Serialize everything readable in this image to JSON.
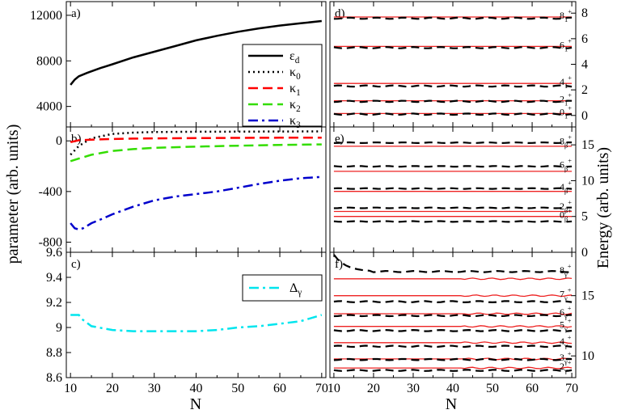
{
  "figure": {
    "left_axis_label": "parameter (arb. units)",
    "right_axis_label": "Energy (arb. units)",
    "bottom_axis_label": "N"
  },
  "chart_data": [
    {
      "panel": "a)",
      "type": "line",
      "ylim": [
        2200,
        13200
      ],
      "yticks": [
        4000,
        8000,
        12000
      ],
      "xlim": [
        9,
        71
      ],
      "xticks": [
        10,
        20,
        30,
        40,
        50,
        60,
        70
      ],
      "legend": {
        "placement": "bottom-right"
      },
      "series": [
        {
          "name": "ε_d",
          "color": "#000000",
          "dash": "solid",
          "x": [
            10,
            11,
            12,
            14,
            17,
            20,
            25,
            30,
            35,
            40,
            45,
            50,
            55,
            60,
            65,
            70
          ],
          "y": [
            5900,
            6350,
            6650,
            6950,
            7350,
            7700,
            8300,
            8800,
            9300,
            9800,
            10200,
            10550,
            10850,
            11100,
            11300,
            11500
          ]
        },
        {
          "name": "κ_0",
          "color": "#000000",
          "dash": "dot",
          "x": [],
          "y": []
        },
        {
          "name": "κ_1",
          "color": "#ff0000",
          "dash": "dash",
          "x": [],
          "y": []
        },
        {
          "name": "κ_2",
          "color": "#33dd00",
          "dash": "dash",
          "x": [],
          "y": []
        },
        {
          "name": "κ_3",
          "color": "#0000cc",
          "dash": "dashdot",
          "x": [],
          "y": []
        }
      ]
    },
    {
      "panel": "b)",
      "type": "line",
      "ylim": [
        -880,
        110
      ],
      "yticks": [
        0,
        -400,
        -800
      ],
      "xlim": [
        9,
        71
      ],
      "xticks": [
        10,
        20,
        30,
        40,
        50,
        60,
        70
      ],
      "series": [
        {
          "name": "κ_0",
          "color": "#000000",
          "dash": "dot",
          "x": [
            10,
            12,
            15,
            20,
            25,
            30,
            40,
            50,
            60,
            70
          ],
          "y": [
            -110,
            -40,
            20,
            55,
            65,
            70,
            72,
            73,
            74,
            75
          ]
        },
        {
          "name": "κ_1",
          "color": "#ff0000",
          "dash": "dash",
          "x": [
            10,
            12,
            15,
            20,
            25,
            30,
            40,
            50,
            60,
            70
          ],
          "y": [
            -10,
            5,
            10,
            15,
            18,
            20,
            22,
            24,
            25,
            26
          ]
        },
        {
          "name": "κ_2",
          "color": "#33dd00",
          "dash": "dash",
          "x": [
            10,
            12,
            15,
            20,
            25,
            30,
            40,
            50,
            60,
            70
          ],
          "y": [
            -160,
            -140,
            -110,
            -80,
            -65,
            -55,
            -45,
            -38,
            -32,
            -28
          ]
        },
        {
          "name": "κ_3",
          "color": "#0000cc",
          "dash": "dashdot",
          "x": [
            10,
            11,
            12,
            13,
            15,
            18,
            20,
            25,
            30,
            35,
            40,
            45,
            50,
            55,
            60,
            65,
            70
          ],
          "y": [
            -650,
            -690,
            -700,
            -690,
            -650,
            -610,
            -580,
            -520,
            -470,
            -440,
            -420,
            -400,
            -370,
            -340,
            -315,
            -295,
            -285
          ]
        }
      ]
    },
    {
      "panel": "c)",
      "type": "line",
      "ylim": [
        8.6,
        9.6
      ],
      "yticks": [
        8.6,
        8.8,
        9,
        9.2,
        9.4,
        9.6
      ],
      "ytick_labels": [
        "8.6",
        "8.8",
        "9",
        "9.2",
        "9.4",
        "9.6"
      ],
      "xlim": [
        9,
        71
      ],
      "xticks": [
        10,
        20,
        30,
        40,
        50,
        60,
        70
      ],
      "legend": {
        "placement": "top-right"
      },
      "series": [
        {
          "name": "Δ_γ",
          "color": "#00e5ee",
          "dash": "dashdot",
          "x": [
            10,
            11,
            12,
            13,
            15,
            20,
            25,
            30,
            35,
            40,
            45,
            50,
            55,
            60,
            65,
            70
          ],
          "y": [
            9.1,
            9.1,
            9.1,
            9.06,
            9.01,
            8.98,
            8.97,
            8.97,
            8.97,
            8.97,
            8.98,
            9.0,
            9.01,
            9.03,
            9.05,
            9.1
          ]
        }
      ]
    },
    {
      "panel": "d)",
      "type": "line",
      "ylim": [
        -0.9,
        8.9
      ],
      "yticks": [
        0,
        2,
        4,
        6,
        8
      ],
      "xlim": [
        9,
        71
      ],
      "xticks": [
        10,
        20,
        30,
        40,
        50,
        60,
        70
      ],
      "levels": [
        {
          "label": "0",
          "sub": "1",
          "sup": "+",
          "exp": 0.1,
          "theory": 0.15
        },
        {
          "label": "2",
          "sub": "1",
          "sup": "+",
          "exp": 1.1,
          "theory": 1.15
        },
        {
          "label": "4",
          "sub": "1",
          "sup": "+",
          "exp": 2.3,
          "theory": 2.5
        },
        {
          "label": "6",
          "sub": "1",
          "sup": "+",
          "exp": 5.3,
          "theory": 5.4
        },
        {
          "label": "8",
          "sub": "1",
          "sup": "+",
          "exp": 7.6,
          "theory": 7.7
        }
      ]
    },
    {
      "panel": "e)",
      "type": "line",
      "ylim": [
        0,
        17.5
      ],
      "yticks": [
        0,
        5,
        10,
        15
      ],
      "xlim": [
        9,
        71
      ],
      "xticks": [
        10,
        20,
        30,
        40,
        50,
        60,
        70
      ],
      "levels": [
        {
          "label": "0",
          "sub": "β",
          "sup": "+",
          "exp": 4.3,
          "theory": 5.0
        },
        {
          "label": "2",
          "sub": "β",
          "sup": "+",
          "exp": 6.2,
          "theory": 5.7
        },
        {
          "label": "4",
          "sub": "β",
          "sup": "+",
          "exp": 8.9,
          "theory": 8.5
        },
        {
          "label": "6",
          "sub": "β",
          "sup": "+",
          "exp": 12.0,
          "theory": 11.3
        },
        {
          "label": "8",
          "sub": "β",
          "sup": "+",
          "exp": 15.3,
          "theory": 14.8
        }
      ]
    },
    {
      "panel": "f)",
      "type": "line",
      "ylim": [
        8.2,
        18.6
      ],
      "yticks": [
        10,
        15
      ],
      "xlim": [
        9,
        71
      ],
      "xticks": [
        10,
        20,
        30,
        40,
        50,
        60,
        70
      ],
      "levels": [
        {
          "label": "2",
          "sub": "γ",
          "sup": "+",
          "exp": 8.8,
          "theory": 9.0
        },
        {
          "label": "3",
          "sub": "γ",
          "sup": "+",
          "exp": 9.7,
          "theory": 9.75
        },
        {
          "label": "4",
          "sub": "γ",
          "sup": "+",
          "exp": 10.8,
          "theory": 11.1
        },
        {
          "label": "5",
          "sub": "γ",
          "sup": "+",
          "exp": 12.1,
          "theory": 12.45
        },
        {
          "label": "6",
          "sub": "γ",
          "sup": "+",
          "exp": 13.35,
          "theory": 13.5
        },
        {
          "label": "7",
          "sub": "γ",
          "sup": "+",
          "exp": 14.5,
          "theory": 15.0
        },
        {
          "label": "8",
          "sub": "γ",
          "sup": "+",
          "exp": 17.0,
          "theory": 16.4,
          "exp_start": 18.4
        }
      ]
    }
  ]
}
